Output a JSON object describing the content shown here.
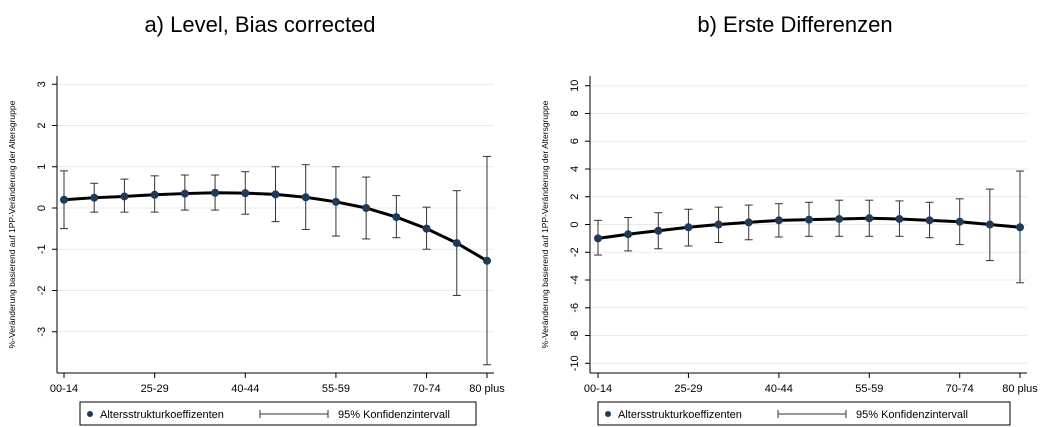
{
  "chart_data": [
    {
      "type": "line",
      "title": "a) Level, Bias corrected",
      "ylabel": "%-Veränderung basierend auf 1PP-Veränderung der Altersgruppe",
      "categories": [
        "00-14",
        null,
        null,
        "25-29",
        null,
        null,
        "40-44",
        null,
        null,
        "55-59",
        null,
        null,
        "70-74",
        null,
        "80 plus"
      ],
      "series": [
        {
          "name": "Altersstrukturkoeffizenten",
          "color": "#000000",
          "values": [
            0.2,
            0.25,
            0.28,
            0.32,
            0.35,
            0.37,
            0.36,
            0.33,
            0.26,
            0.15,
            0.0,
            -0.22,
            -0.5,
            -0.85,
            -1.28
          ]
        }
      ],
      "interval": {
        "name": "95% Konfidenzintervall",
        "upper": [
          0.9,
          0.6,
          0.7,
          0.78,
          0.8,
          0.8,
          0.88,
          1.0,
          1.05,
          1.0,
          0.75,
          0.3,
          0.02,
          0.42,
          1.25
        ],
        "lower": [
          -0.5,
          -0.1,
          -0.1,
          -0.1,
          -0.05,
          -0.05,
          -0.15,
          -0.33,
          -0.52,
          -0.68,
          -0.75,
          -0.72,
          -1.0,
          -2.12,
          -3.8
        ]
      },
      "ylim": [
        -4,
        3.2
      ],
      "yticks": [
        -3,
        -2,
        -1,
        0,
        1,
        2,
        3
      ],
      "grid": true
    },
    {
      "type": "line",
      "title": "b) Erste Differenzen",
      "ylabel": "%-Veränderung basierend auf 1PP-Veränderung der Altersgruppe",
      "categories": [
        "00-14",
        null,
        null,
        "25-29",
        null,
        null,
        "40-44",
        null,
        null,
        "55-59",
        null,
        null,
        "70-74",
        null,
        "80 plus"
      ],
      "series": [
        {
          "name": "Altersstrukturkoeffizenten",
          "color": "#000000",
          "values": [
            -1.0,
            -0.7,
            -0.45,
            -0.2,
            0.0,
            0.15,
            0.3,
            0.35,
            0.4,
            0.45,
            0.4,
            0.3,
            0.2,
            0.0,
            -0.2
          ]
        }
      ],
      "interval": {
        "name": "95% Konfidenzintervall",
        "upper": [
          0.3,
          0.5,
          0.85,
          1.1,
          1.25,
          1.4,
          1.5,
          1.6,
          1.75,
          1.75,
          1.7,
          1.6,
          1.85,
          2.55,
          3.85
        ],
        "lower": [
          -2.2,
          -1.9,
          -1.75,
          -1.55,
          -1.3,
          -1.1,
          -0.9,
          -0.85,
          -0.85,
          -0.85,
          -0.85,
          -0.95,
          -1.45,
          -2.6,
          -4.2
        ]
      },
      "ylim": [
        -10.7,
        10.7
      ],
      "yticks": [
        -10,
        -8,
        -6,
        -4,
        -2,
        0,
        2,
        4,
        6,
        8,
        10
      ],
      "grid": true
    }
  ]
}
